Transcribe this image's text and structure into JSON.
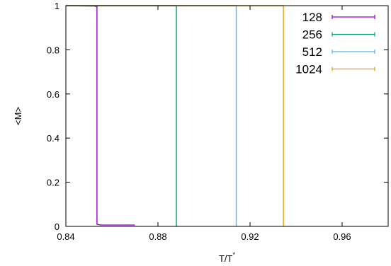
{
  "chart_data": {
    "type": "line",
    "xlabel": "T/T",
    "xlabel_superscript": "*",
    "ylabel": "<M>",
    "xlim": [
      0.84,
      0.98
    ],
    "ylim": [
      0,
      1
    ],
    "xticks": [
      {
        "value": 0.84,
        "label": "0.84"
      },
      {
        "value": 0.88,
        "label": "0.88"
      },
      {
        "value": 0.92,
        "label": "0.92"
      },
      {
        "value": 0.96,
        "label": "0.96"
      }
    ],
    "yticks": [
      {
        "value": 0,
        "label": "0"
      },
      {
        "value": 0.2,
        "label": "0.2"
      },
      {
        "value": 0.4,
        "label": "0.4"
      },
      {
        "value": 0.6,
        "label": "0.6"
      },
      {
        "value": 0.8,
        "label": "0.8"
      },
      {
        "value": 1,
        "label": "1"
      }
    ],
    "grid": false,
    "legend_position": "top-right",
    "series": [
      {
        "name": "128",
        "color": "#9400d3",
        "points": [
          [
            0.84,
            1.0
          ],
          [
            0.8525,
            0.998
          ],
          [
            0.8535,
            0.995
          ],
          [
            0.8535,
            0.01
          ],
          [
            0.855,
            0.006
          ],
          [
            0.87,
            0.006
          ]
        ]
      },
      {
        "name": "256",
        "color": "#009e73",
        "points": [
          [
            0.84,
            1.0
          ],
          [
            0.887,
            1.0
          ],
          [
            0.888,
            0.998
          ],
          [
            0.888,
            0.002
          ],
          [
            0.8885,
            0.0
          ]
        ]
      },
      {
        "name": "512",
        "color": "#56b4e9",
        "points": [
          [
            0.84,
            1.0
          ],
          [
            0.914,
            1.0
          ],
          [
            0.914,
            0.0
          ]
        ]
      },
      {
        "name": "1024",
        "color": "#e69f00",
        "points": [
          [
            0.84,
            1.0
          ],
          [
            0.9345,
            1.0
          ],
          [
            0.9345,
            0.0
          ]
        ]
      }
    ]
  }
}
